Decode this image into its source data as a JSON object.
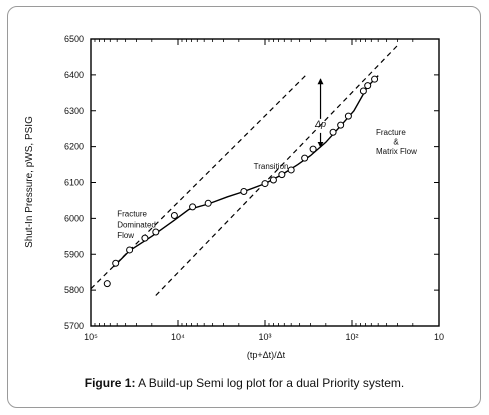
{
  "caption": {
    "label": "Figure 1:",
    "text": "A Build-up Semi log plot for a dual Priority system."
  },
  "chart_data": {
    "type": "scatter",
    "title": "",
    "xlabel": "(tp+Δt)/Δt",
    "ylabel": "Shut-In Pressure, pWS, PSIG",
    "x_scale": "log-reversed",
    "xlim": [
      100000,
      10
    ],
    "ylim": [
      5700,
      6500
    ],
    "y_ticks": [
      5700,
      5800,
      5900,
      6000,
      6100,
      6200,
      6300,
      6400,
      6500
    ],
    "x_tick_labels": [
      "10⁵",
      "10⁴",
      "10³",
      "10²",
      "10"
    ],
    "x_tick_values": [
      100000,
      10000,
      1000,
      100,
      10
    ],
    "grid": false,
    "legend": "none",
    "annotations": [
      {
        "text": "Fracture",
        "x": 50000,
        "y": 6005
      },
      {
        "text": "Dominated",
        "x": 50000,
        "y": 5975
      },
      {
        "text": "Flow",
        "x": 50000,
        "y": 5945
      },
      {
        "text": "Transition",
        "x": 1350,
        "y": 6138
      },
      {
        "text": "Δp",
        "x": 230,
        "y": 6255
      },
      {
        "text": "Fracture",
        "x": 53,
        "y": 6232
      },
      {
        "text": "&",
        "x": 53,
        "y": 6206
      },
      {
        "text": "Matrix Flow",
        "x": 53,
        "y": 6180
      }
    ],
    "series": [
      {
        "marker": "open-circle",
        "points": [
          [
            65000,
            5818
          ],
          [
            52000,
            5875
          ],
          [
            36000,
            5912
          ],
          [
            24000,
            5945
          ],
          [
            18000,
            5962
          ],
          [
            11000,
            6008
          ],
          [
            6800,
            6032
          ],
          [
            4500,
            6042
          ],
          [
            1750,
            6075
          ],
          [
            1000,
            6097
          ],
          [
            800,
            6107
          ],
          [
            640,
            6122
          ],
          [
            500,
            6135
          ],
          [
            350,
            6168
          ],
          [
            280,
            6193
          ],
          [
            165,
            6240
          ],
          [
            135,
            6260
          ],
          [
            110,
            6285
          ],
          [
            74,
            6355
          ],
          [
            66,
            6370
          ],
          [
            55,
            6388
          ]
        ]
      },
      {
        "style": "solid-curve",
        "points": [
          [
            55000,
            5865
          ],
          [
            36000,
            5910
          ],
          [
            20000,
            5950
          ],
          [
            11000,
            5995
          ],
          [
            7500,
            6025
          ],
          [
            4500,
            6040
          ],
          [
            2700,
            6060
          ],
          [
            1750,
            6075
          ],
          [
            1000,
            6097
          ],
          [
            640,
            6122
          ],
          [
            420,
            6150
          ],
          [
            300,
            6175
          ],
          [
            200,
            6212
          ],
          [
            135,
            6258
          ],
          [
            95,
            6300
          ],
          [
            66,
            6368
          ],
          [
            50,
            6398
          ]
        ]
      },
      {
        "style": "dashed-line",
        "points": [
          [
            100000,
            5804
          ],
          [
            320,
            6405
          ]
        ]
      },
      {
        "style": "dashed-line",
        "points": [
          [
            18000,
            5785
          ],
          [
            30,
            6482
          ]
        ]
      }
    ],
    "delta_p_arrow": {
      "x": 230,
      "y_top": 6400,
      "y_bottom": 6190
    }
  }
}
